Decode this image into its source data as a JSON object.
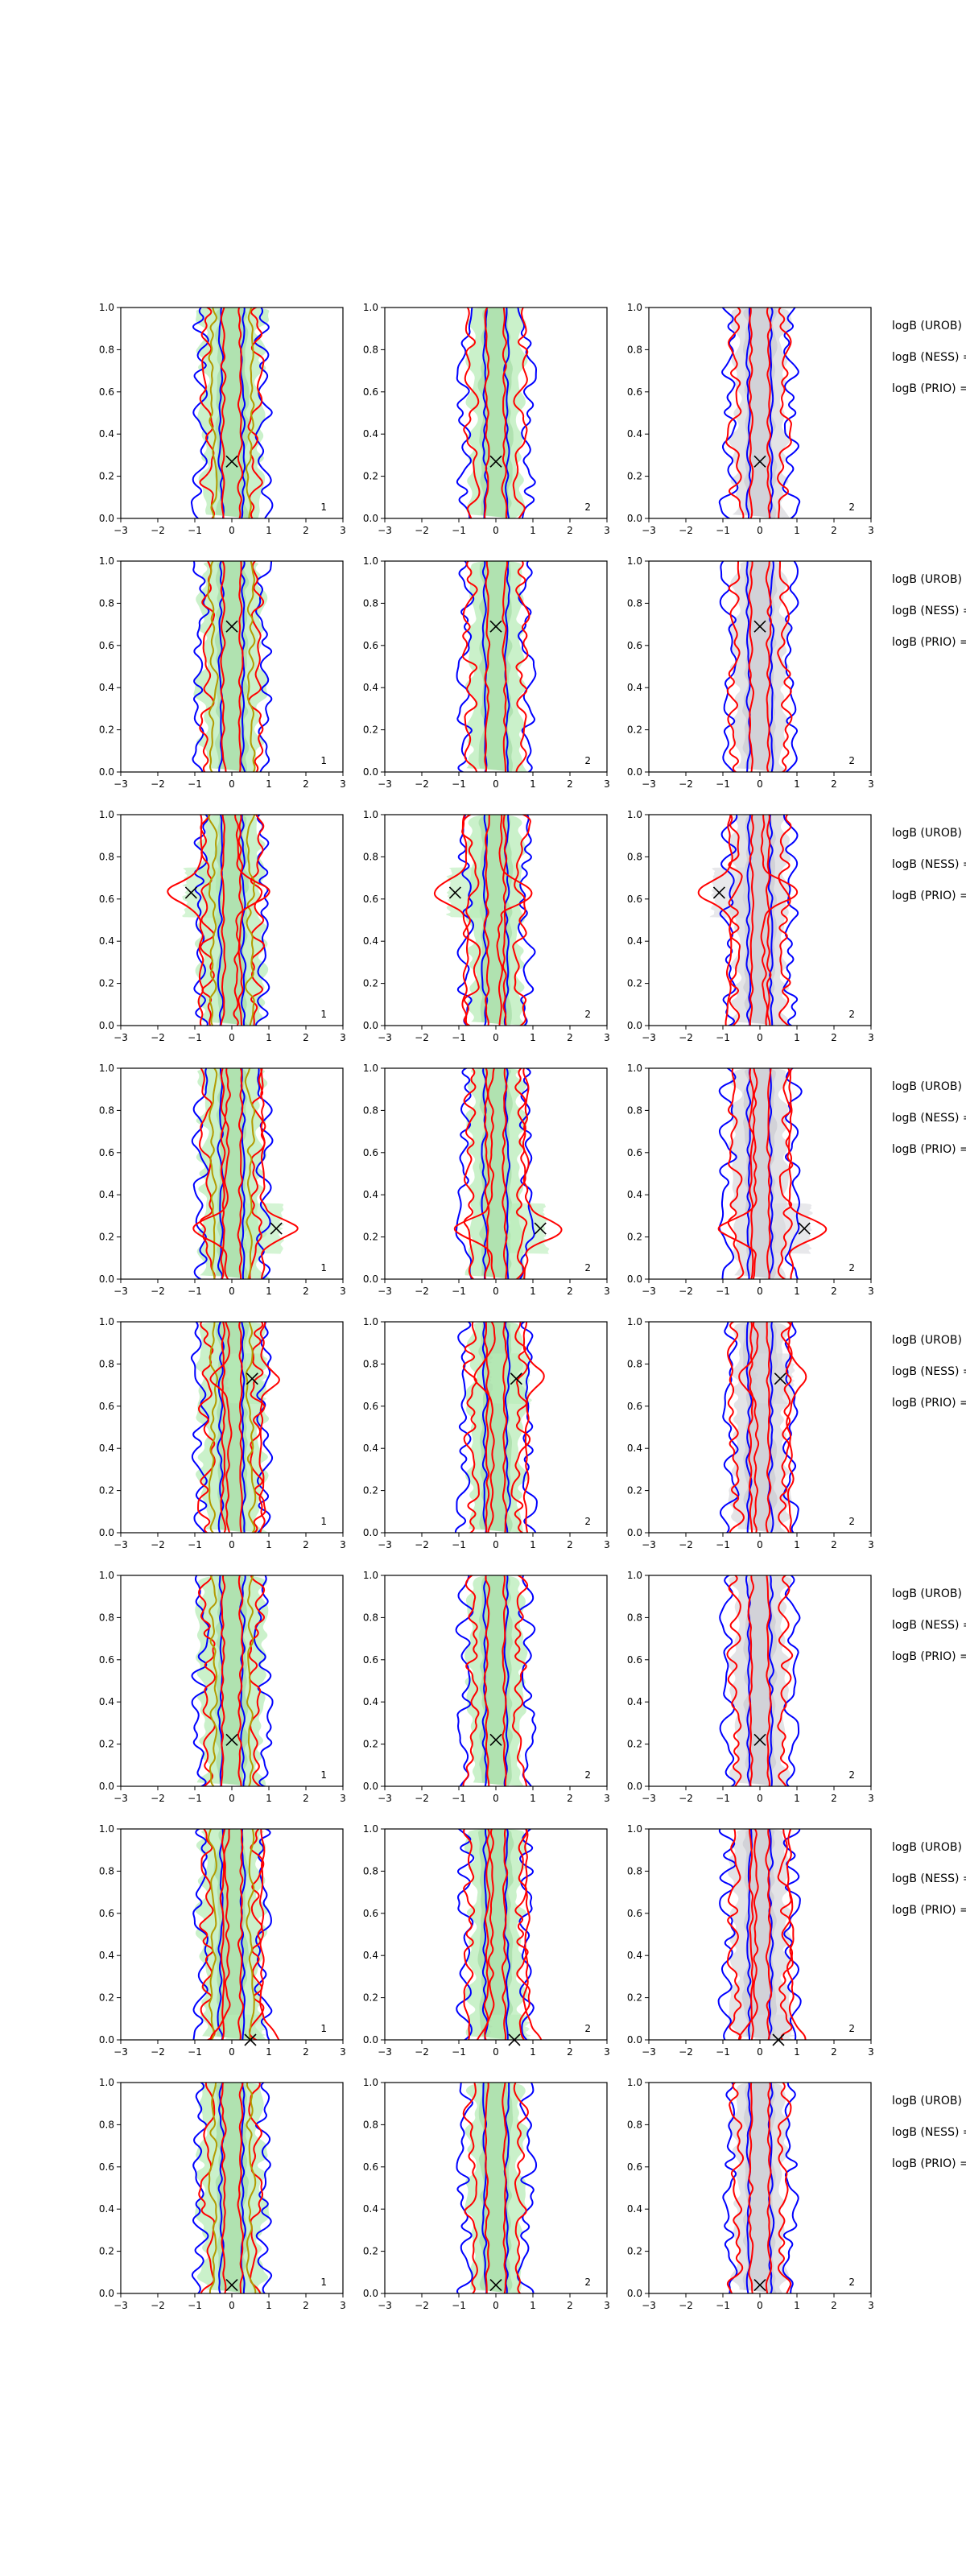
{
  "figure": {
    "x_ticks": [
      -3,
      -2,
      -1,
      0,
      1,
      2,
      3
    ],
    "y_ticks": [
      0.0,
      0.2,
      0.4,
      0.6,
      0.8,
      1.0
    ],
    "x_tick_labels": [
      "−3",
      "−2",
      "−1",
      "0",
      "1",
      "2",
      "3"
    ],
    "y_tick_labels": [
      "0.0",
      "0.2",
      "0.4",
      "0.6",
      "0.8",
      "1.0"
    ],
    "xlim": [
      -3,
      3
    ],
    "ylim": [
      0,
      1
    ],
    "colors": {
      "blue": "#0000ff",
      "red": "#ff0000",
      "olive": "#b39b00",
      "green_fill": "#b8ecb8",
      "grey_fill": "#d9d9de"
    },
    "row_labels": [
      "logB (UROB) =",
      "logB (NESS) =",
      "logB (PRIO) ="
    ],
    "column_numbers": [
      "1",
      "2",
      "2"
    ]
  },
  "chart_data": {
    "type": "contour",
    "title": "",
    "xlabel": "",
    "ylabel": "",
    "grid": false,
    "rows": [
      {
        "marker": [
          0.0,
          0.27
        ],
        "marker_visible": true
      },
      {
        "marker": [
          0.0,
          0.69
        ],
        "marker_visible": true
      },
      {
        "marker": [
          -1.1,
          0.63
        ],
        "marker_visible": true
      },
      {
        "marker": [
          1.2,
          0.24
        ],
        "marker_visible": true
      },
      {
        "marker": [
          0.55,
          0.73
        ],
        "marker_visible": true
      },
      {
        "marker": [
          0.0,
          0.22
        ],
        "marker_visible": true
      },
      {
        "marker": [
          0.5,
          0.0
        ],
        "marker_visible": true
      },
      {
        "marker": [
          0.0,
          0.04
        ],
        "marker_visible": true
      }
    ]
  }
}
